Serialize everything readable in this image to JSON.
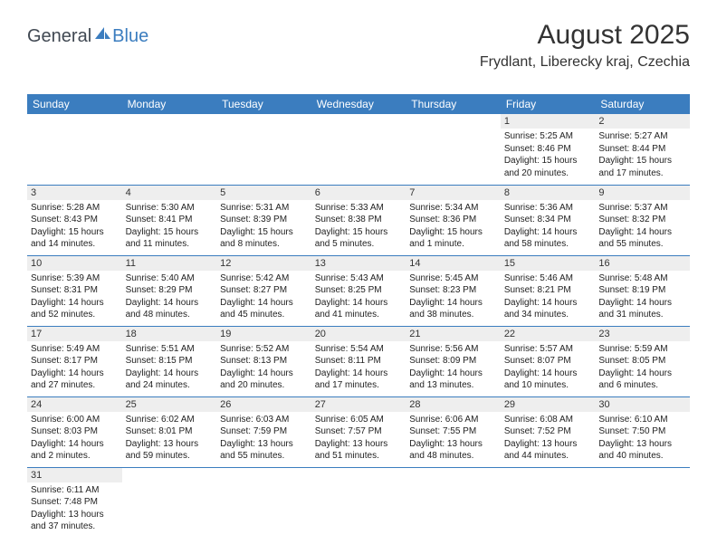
{
  "logo": {
    "text1": "General",
    "text2": "Blue"
  },
  "header": {
    "title": "August 2025",
    "subtitle": "Frydlant, Liberecky kraj, Czechia"
  },
  "colors": {
    "header_bg": "#3b7dbf",
    "header_fg": "#ffffff",
    "daynum_bg": "#eeeeee",
    "row_border": "#3b7dbf"
  },
  "dayHeaders": [
    "Sunday",
    "Monday",
    "Tuesday",
    "Wednesday",
    "Thursday",
    "Friday",
    "Saturday"
  ],
  "weeks": [
    [
      {
        "n": "",
        "sr": "",
        "ss": "",
        "dl": ""
      },
      {
        "n": "",
        "sr": "",
        "ss": "",
        "dl": ""
      },
      {
        "n": "",
        "sr": "",
        "ss": "",
        "dl": ""
      },
      {
        "n": "",
        "sr": "",
        "ss": "",
        "dl": ""
      },
      {
        "n": "",
        "sr": "",
        "ss": "",
        "dl": ""
      },
      {
        "n": "1",
        "sr": "Sunrise: 5:25 AM",
        "ss": "Sunset: 8:46 PM",
        "dl": "Daylight: 15 hours and 20 minutes."
      },
      {
        "n": "2",
        "sr": "Sunrise: 5:27 AM",
        "ss": "Sunset: 8:44 PM",
        "dl": "Daylight: 15 hours and 17 minutes."
      }
    ],
    [
      {
        "n": "3",
        "sr": "Sunrise: 5:28 AM",
        "ss": "Sunset: 8:43 PM",
        "dl": "Daylight: 15 hours and 14 minutes."
      },
      {
        "n": "4",
        "sr": "Sunrise: 5:30 AM",
        "ss": "Sunset: 8:41 PM",
        "dl": "Daylight: 15 hours and 11 minutes."
      },
      {
        "n": "5",
        "sr": "Sunrise: 5:31 AM",
        "ss": "Sunset: 8:39 PM",
        "dl": "Daylight: 15 hours and 8 minutes."
      },
      {
        "n": "6",
        "sr": "Sunrise: 5:33 AM",
        "ss": "Sunset: 8:38 PM",
        "dl": "Daylight: 15 hours and 5 minutes."
      },
      {
        "n": "7",
        "sr": "Sunrise: 5:34 AM",
        "ss": "Sunset: 8:36 PM",
        "dl": "Daylight: 15 hours and 1 minute."
      },
      {
        "n": "8",
        "sr": "Sunrise: 5:36 AM",
        "ss": "Sunset: 8:34 PM",
        "dl": "Daylight: 14 hours and 58 minutes."
      },
      {
        "n": "9",
        "sr": "Sunrise: 5:37 AM",
        "ss": "Sunset: 8:32 PM",
        "dl": "Daylight: 14 hours and 55 minutes."
      }
    ],
    [
      {
        "n": "10",
        "sr": "Sunrise: 5:39 AM",
        "ss": "Sunset: 8:31 PM",
        "dl": "Daylight: 14 hours and 52 minutes."
      },
      {
        "n": "11",
        "sr": "Sunrise: 5:40 AM",
        "ss": "Sunset: 8:29 PM",
        "dl": "Daylight: 14 hours and 48 minutes."
      },
      {
        "n": "12",
        "sr": "Sunrise: 5:42 AM",
        "ss": "Sunset: 8:27 PM",
        "dl": "Daylight: 14 hours and 45 minutes."
      },
      {
        "n": "13",
        "sr": "Sunrise: 5:43 AM",
        "ss": "Sunset: 8:25 PM",
        "dl": "Daylight: 14 hours and 41 minutes."
      },
      {
        "n": "14",
        "sr": "Sunrise: 5:45 AM",
        "ss": "Sunset: 8:23 PM",
        "dl": "Daylight: 14 hours and 38 minutes."
      },
      {
        "n": "15",
        "sr": "Sunrise: 5:46 AM",
        "ss": "Sunset: 8:21 PM",
        "dl": "Daylight: 14 hours and 34 minutes."
      },
      {
        "n": "16",
        "sr": "Sunrise: 5:48 AM",
        "ss": "Sunset: 8:19 PM",
        "dl": "Daylight: 14 hours and 31 minutes."
      }
    ],
    [
      {
        "n": "17",
        "sr": "Sunrise: 5:49 AM",
        "ss": "Sunset: 8:17 PM",
        "dl": "Daylight: 14 hours and 27 minutes."
      },
      {
        "n": "18",
        "sr": "Sunrise: 5:51 AM",
        "ss": "Sunset: 8:15 PM",
        "dl": "Daylight: 14 hours and 24 minutes."
      },
      {
        "n": "19",
        "sr": "Sunrise: 5:52 AM",
        "ss": "Sunset: 8:13 PM",
        "dl": "Daylight: 14 hours and 20 minutes."
      },
      {
        "n": "20",
        "sr": "Sunrise: 5:54 AM",
        "ss": "Sunset: 8:11 PM",
        "dl": "Daylight: 14 hours and 17 minutes."
      },
      {
        "n": "21",
        "sr": "Sunrise: 5:56 AM",
        "ss": "Sunset: 8:09 PM",
        "dl": "Daylight: 14 hours and 13 minutes."
      },
      {
        "n": "22",
        "sr": "Sunrise: 5:57 AM",
        "ss": "Sunset: 8:07 PM",
        "dl": "Daylight: 14 hours and 10 minutes."
      },
      {
        "n": "23",
        "sr": "Sunrise: 5:59 AM",
        "ss": "Sunset: 8:05 PM",
        "dl": "Daylight: 14 hours and 6 minutes."
      }
    ],
    [
      {
        "n": "24",
        "sr": "Sunrise: 6:00 AM",
        "ss": "Sunset: 8:03 PM",
        "dl": "Daylight: 14 hours and 2 minutes."
      },
      {
        "n": "25",
        "sr": "Sunrise: 6:02 AM",
        "ss": "Sunset: 8:01 PM",
        "dl": "Daylight: 13 hours and 59 minutes."
      },
      {
        "n": "26",
        "sr": "Sunrise: 6:03 AM",
        "ss": "Sunset: 7:59 PM",
        "dl": "Daylight: 13 hours and 55 minutes."
      },
      {
        "n": "27",
        "sr": "Sunrise: 6:05 AM",
        "ss": "Sunset: 7:57 PM",
        "dl": "Daylight: 13 hours and 51 minutes."
      },
      {
        "n": "28",
        "sr": "Sunrise: 6:06 AM",
        "ss": "Sunset: 7:55 PM",
        "dl": "Daylight: 13 hours and 48 minutes."
      },
      {
        "n": "29",
        "sr": "Sunrise: 6:08 AM",
        "ss": "Sunset: 7:52 PM",
        "dl": "Daylight: 13 hours and 44 minutes."
      },
      {
        "n": "30",
        "sr": "Sunrise: 6:10 AM",
        "ss": "Sunset: 7:50 PM",
        "dl": "Daylight: 13 hours and 40 minutes."
      }
    ],
    [
      {
        "n": "31",
        "sr": "Sunrise: 6:11 AM",
        "ss": "Sunset: 7:48 PM",
        "dl": "Daylight: 13 hours and 37 minutes."
      },
      {
        "n": "",
        "sr": "",
        "ss": "",
        "dl": ""
      },
      {
        "n": "",
        "sr": "",
        "ss": "",
        "dl": ""
      },
      {
        "n": "",
        "sr": "",
        "ss": "",
        "dl": ""
      },
      {
        "n": "",
        "sr": "",
        "ss": "",
        "dl": ""
      },
      {
        "n": "",
        "sr": "",
        "ss": "",
        "dl": ""
      },
      {
        "n": "",
        "sr": "",
        "ss": "",
        "dl": ""
      }
    ]
  ]
}
